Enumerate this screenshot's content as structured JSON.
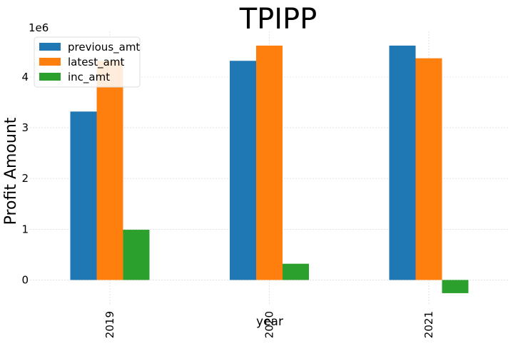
{
  "chart_data": {
    "type": "bar",
    "title": "TPIPP",
    "xlabel": "year",
    "ylabel": "Profit Amount",
    "y_multiplier": "1e6",
    "categories": [
      "2019",
      "2020",
      "2021"
    ],
    "series": [
      {
        "name": "previous_amt",
        "color": "#1f77b4",
        "values": [
          3.32,
          4.32,
          4.62
        ]
      },
      {
        "name": "latest_amt",
        "color": "#ff7f0e",
        "values": [
          4.32,
          4.62,
          4.37
        ]
      },
      {
        "name": "inc_amt",
        "color": "#2ca02c",
        "values": [
          0.99,
          0.32,
          -0.26
        ]
      }
    ],
    "ylim": [
      -0.5,
      4.9
    ],
    "yticks": [
      "0",
      "1",
      "2",
      "3",
      "4"
    ],
    "grid": true,
    "legend_position": "top-left"
  }
}
